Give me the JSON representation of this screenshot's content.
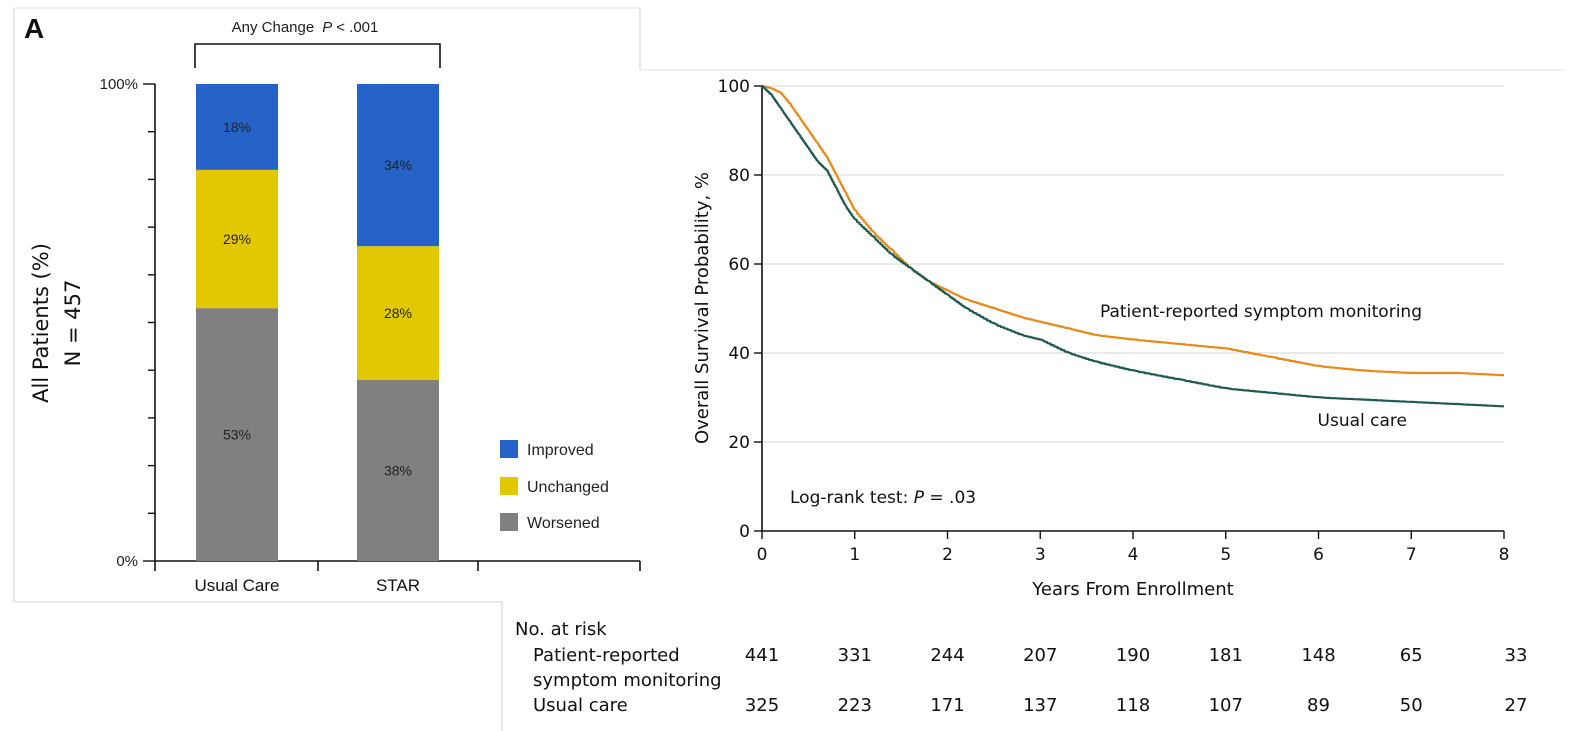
{
  "chart_data": [
    {
      "type": "bar",
      "stacked": true,
      "panel_label": "A",
      "annotation_text": "Any Change",
      "annotation_p_italic": "P",
      "annotation_p_value": "< .001",
      "ylabel_line1": "All Patients (%)",
      "ylabel_line2": "N = 457",
      "ylim": [
        0,
        100
      ],
      "ytick_labels": [
        "0%",
        "100%"
      ],
      "categories": [
        "Usual Care",
        "STAR"
      ],
      "series": [
        {
          "name": "Worsened",
          "color": "#808080",
          "values": [
            53,
            38
          ],
          "labels": [
            "53%",
            "38%"
          ]
        },
        {
          "name": "Unchanged",
          "color": "#e2c800",
          "values": [
            29,
            28
          ],
          "labels": [
            "29%",
            "28%"
          ]
        },
        {
          "name": "Improved",
          "color": "#2563c9",
          "values": [
            18,
            34
          ],
          "labels": [
            "18%",
            "34%"
          ]
        }
      ],
      "legend_order": [
        "Improved",
        "Unchanged",
        "Worsened"
      ],
      "legend_position": "bottom-right"
    },
    {
      "type": "line",
      "step": true,
      "xlabel": "Years From Enrollment",
      "ylabel": "Overall Survival Probability, %",
      "xlim": [
        0,
        8
      ],
      "ylim": [
        0,
        100
      ],
      "xticks": [
        0,
        1,
        2,
        3,
        4,
        5,
        6,
        7,
        8
      ],
      "yticks": [
        0,
        20,
        40,
        60,
        80,
        100
      ],
      "grid": "horizontal",
      "annotation_prefix": "Log-rank test: ",
      "annotation_p_italic": "P",
      "annotation_p_value": " = .03",
      "series": [
        {
          "name": "Patient-reported symptom monitoring",
          "color": "#e8891a",
          "x": [
            0,
            0.1,
            0.2,
            0.3,
            0.4,
            0.5,
            0.6,
            0.7,
            0.8,
            0.9,
            1.0,
            1.2,
            1.4,
            1.6,
            1.8,
            2.0,
            2.2,
            2.5,
            2.8,
            3.0,
            3.3,
            3.6,
            4.0,
            4.5,
            5.0,
            5.5,
            6.0,
            6.5,
            7.0,
            7.5,
            8.0
          ],
          "y": [
            100,
            99.5,
            98.5,
            96,
            93,
            90,
            87,
            84,
            80,
            76,
            72,
            67,
            63,
            59,
            56,
            54,
            52,
            50,
            48,
            47,
            45.5,
            44,
            43,
            42,
            41,
            39,
            37,
            36,
            35.5,
            35.5,
            35
          ]
        },
        {
          "name": "Usual care",
          "color": "#1f5a50",
          "x": [
            0,
            0.1,
            0.2,
            0.3,
            0.4,
            0.5,
            0.6,
            0.7,
            0.8,
            0.9,
            1.0,
            1.2,
            1.4,
            1.6,
            1.8,
            2.0,
            2.2,
            2.5,
            2.8,
            3.0,
            3.3,
            3.6,
            4.0,
            4.5,
            5.0,
            5.5,
            6.0,
            6.5,
            7.0,
            7.5,
            8.0
          ],
          "y": [
            100,
            98,
            95,
            92,
            89,
            86,
            83,
            81,
            77,
            73,
            70,
            66,
            62,
            59,
            56,
            53,
            50,
            46.5,
            44,
            43,
            40,
            38,
            36,
            34,
            32,
            31,
            30,
            29.5,
            29,
            28.5,
            28
          ]
        }
      ],
      "line_labels": [
        "Patient-reported symptom monitoring",
        "Usual care"
      ],
      "at_risk": {
        "title": "No. at risk",
        "rows": [
          {
            "label_line1": "Patient-reported",
            "label_line2": "symptom monitoring",
            "values": [
              441,
              331,
              244,
              207,
              190,
              181,
              148,
              65,
              33
            ]
          },
          {
            "label_line1": "Usual care",
            "label_line2": "",
            "values": [
              325,
              223,
              171,
              137,
              118,
              107,
              89,
              50,
              27
            ]
          }
        ]
      }
    }
  ]
}
